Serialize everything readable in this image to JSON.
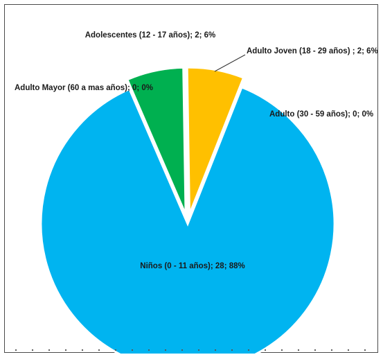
{
  "chart_data": {
    "type": "pie",
    "title": "",
    "slices": [
      {
        "label": "Niños (0 - 11 años); 28; 88%",
        "value": 28,
        "percent": 88,
        "color": "#00b4f0",
        "exploded": false
      },
      {
        "label": "Adolescentes  (12 - 17 años); 2; 6%",
        "value": 2,
        "percent": 6,
        "color": "#00b050",
        "exploded": true
      },
      {
        "label": "Adulto Joven (18 - 29 años) ; 2; 6%",
        "value": 2,
        "percent": 6,
        "color": "#ffc000",
        "exploded": true
      },
      {
        "label": "Adulto (30 - 59 años); 0; 0%",
        "value": 0,
        "percent": 0,
        "color": "#7f7f7f",
        "exploded": false
      },
      {
        "label": "Adulto Mayor (60 a mas años); 0; 0%",
        "value": 0,
        "percent": 0,
        "color": "#a5a5a5",
        "exploded": false
      }
    ],
    "legend": "none"
  }
}
